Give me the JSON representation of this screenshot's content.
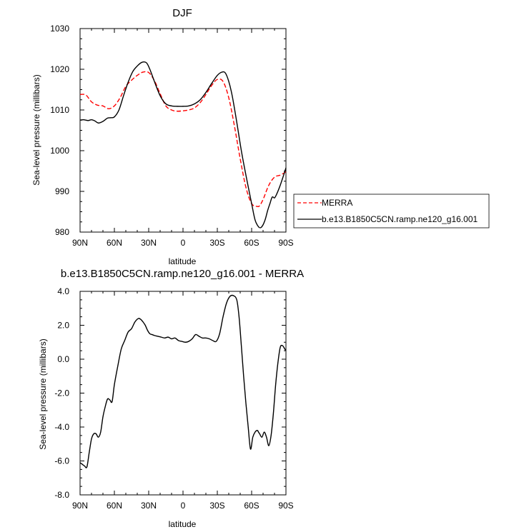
{
  "chart_data": [
    {
      "type": "line",
      "title": "DJF",
      "xlabel": "latitude",
      "ylabel": "Sea-level pressure (millibars)",
      "x_tick_labels": [
        "90N",
        "60N",
        "30N",
        "0",
        "30S",
        "60S",
        "90S"
      ],
      "y_tick_labels": [
        "980",
        "990",
        "1000",
        "1010",
        "1020",
        "1030"
      ],
      "xlim": [
        90,
        -90
      ],
      "ylim": [
        980,
        1030
      ],
      "legend": "right-outside",
      "series": [
        {
          "name": "MERRA",
          "color": "#ff0000",
          "dash": "dashed",
          "x": [
            90,
            85,
            80,
            75,
            70,
            65,
            60,
            55,
            50,
            45,
            40,
            35,
            30,
            25,
            20,
            15,
            10,
            5,
            0,
            -5,
            -10,
            -15,
            -20,
            -25,
            -30,
            -35,
            -40,
            -45,
            -50,
            -55,
            -60,
            -65,
            -67,
            -70,
            -75,
            -80,
            -85,
            -90
          ],
          "y": [
            1013.8,
            1013.7,
            1012,
            1011.2,
            1011,
            1010.3,
            1011,
            1013,
            1015.8,
            1017.3,
            1018.5,
            1019.3,
            1019.2,
            1017.2,
            1014,
            1011,
            1010,
            1009.7,
            1009.8,
            1010,
            1010.5,
            1011.8,
            1013.8,
            1016,
            1017.5,
            1017,
            1013,
            1006,
            998,
            991,
            987,
            986.3,
            986.5,
            988,
            991.5,
            993.5,
            994,
            994.8
          ]
        },
        {
          "name": "b.e13.B1850C5CN.ramp.ne120_g16.001",
          "color": "#000000",
          "dash": "solid",
          "x": [
            90,
            87,
            83,
            80,
            77,
            74,
            70,
            66,
            63,
            60,
            56,
            52,
            48,
            44,
            40,
            36,
            32,
            29,
            25,
            20,
            15,
            10,
            5,
            0,
            -5,
            -10,
            -15,
            -20,
            -25,
            -30,
            -34,
            -37,
            -40,
            -43,
            -47,
            -51,
            -55,
            -60,
            -63,
            -66,
            -68,
            -70,
            -72,
            -74,
            -76,
            -78,
            -80,
            -82,
            -85,
            -88,
            -90
          ],
          "y": [
            1007.5,
            1007.6,
            1007.4,
            1007.6,
            1007.3,
            1006.8,
            1007.2,
            1008,
            1008.1,
            1008.3,
            1010,
            1013.5,
            1016.8,
            1019.4,
            1020.8,
            1021.7,
            1021.6,
            1020,
            1017,
            1013.5,
            1011.5,
            1011,
            1010.9,
            1010.9,
            1011,
            1011.5,
            1012.5,
            1014.3,
            1016.5,
            1018.5,
            1019.3,
            1019.1,
            1017,
            1013.5,
            1007,
            1000,
            994,
            987,
            983,
            981.3,
            981.1,
            981.8,
            983.2,
            985.3,
            987,
            988.6,
            988.4,
            989.4,
            991.5,
            994,
            995.8
          ]
        }
      ]
    },
    {
      "type": "line",
      "title": "b.e13.B1850C5CN.ramp.ne120_g16.001 - MERRA",
      "xlabel": "latitude",
      "ylabel": "Sea-level pressure (millibars)",
      "x_tick_labels": [
        "90N",
        "60N",
        "30N",
        "0",
        "30S",
        "60S",
        "90S"
      ],
      "y_tick_labels": [
        "-8.0",
        "-6.0",
        "-4.0",
        "-2.0",
        "0.0",
        "2.0",
        "4.0"
      ],
      "xlim": [
        90,
        -90
      ],
      "ylim": [
        -8,
        4
      ],
      "series": [
        {
          "color": "#000000",
          "dash": "solid",
          "x": [
            90,
            88,
            86,
            84,
            82,
            80,
            78,
            76,
            74,
            72,
            70,
            68,
            66,
            64,
            62,
            60,
            57,
            54,
            51,
            48,
            45,
            42,
            39,
            37,
            35,
            33,
            31,
            29,
            27,
            25,
            22,
            19,
            16,
            13,
            10,
            7,
            4,
            1,
            -2,
            -5,
            -8,
            -11,
            -14,
            -17,
            -20,
            -23,
            -26,
            -29,
            -32,
            -35,
            -38,
            -41,
            -44,
            -47,
            -49,
            -51,
            -53,
            -55,
            -57,
            -59,
            -61,
            -63,
            -65,
            -66,
            -67,
            -69,
            -71,
            -73,
            -75,
            -77,
            -79,
            -81,
            -83,
            -85,
            -87,
            -89,
            -90
          ],
          "y": [
            -6.1,
            -6.2,
            -6.3,
            -6.35,
            -5.5,
            -4.7,
            -4.4,
            -4.4,
            -4.6,
            -4.3,
            -3.4,
            -2.8,
            -2.35,
            -2.4,
            -2.5,
            -1.5,
            -0.4,
            0.6,
            1.1,
            1.6,
            1.8,
            2.2,
            2.4,
            2.35,
            2.2,
            2.0,
            1.7,
            1.5,
            1.45,
            1.4,
            1.35,
            1.3,
            1.25,
            1.3,
            1.2,
            1.25,
            1.1,
            1.05,
            1.0,
            1.05,
            1.2,
            1.45,
            1.35,
            1.25,
            1.25,
            1.2,
            1.1,
            1.05,
            1.5,
            2.5,
            3.3,
            3.7,
            3.75,
            3.5,
            2.5,
            0.8,
            -1.0,
            -2.6,
            -4.0,
            -5.3,
            -4.6,
            -4.3,
            -4.2,
            -4.3,
            -4.4,
            -4.6,
            -4.3,
            -4.6,
            -5.1,
            -4.5,
            -3.2,
            -1.5,
            -0.2,
            0.7,
            0.8,
            0.6,
            0.5
          ]
        }
      ]
    }
  ]
}
